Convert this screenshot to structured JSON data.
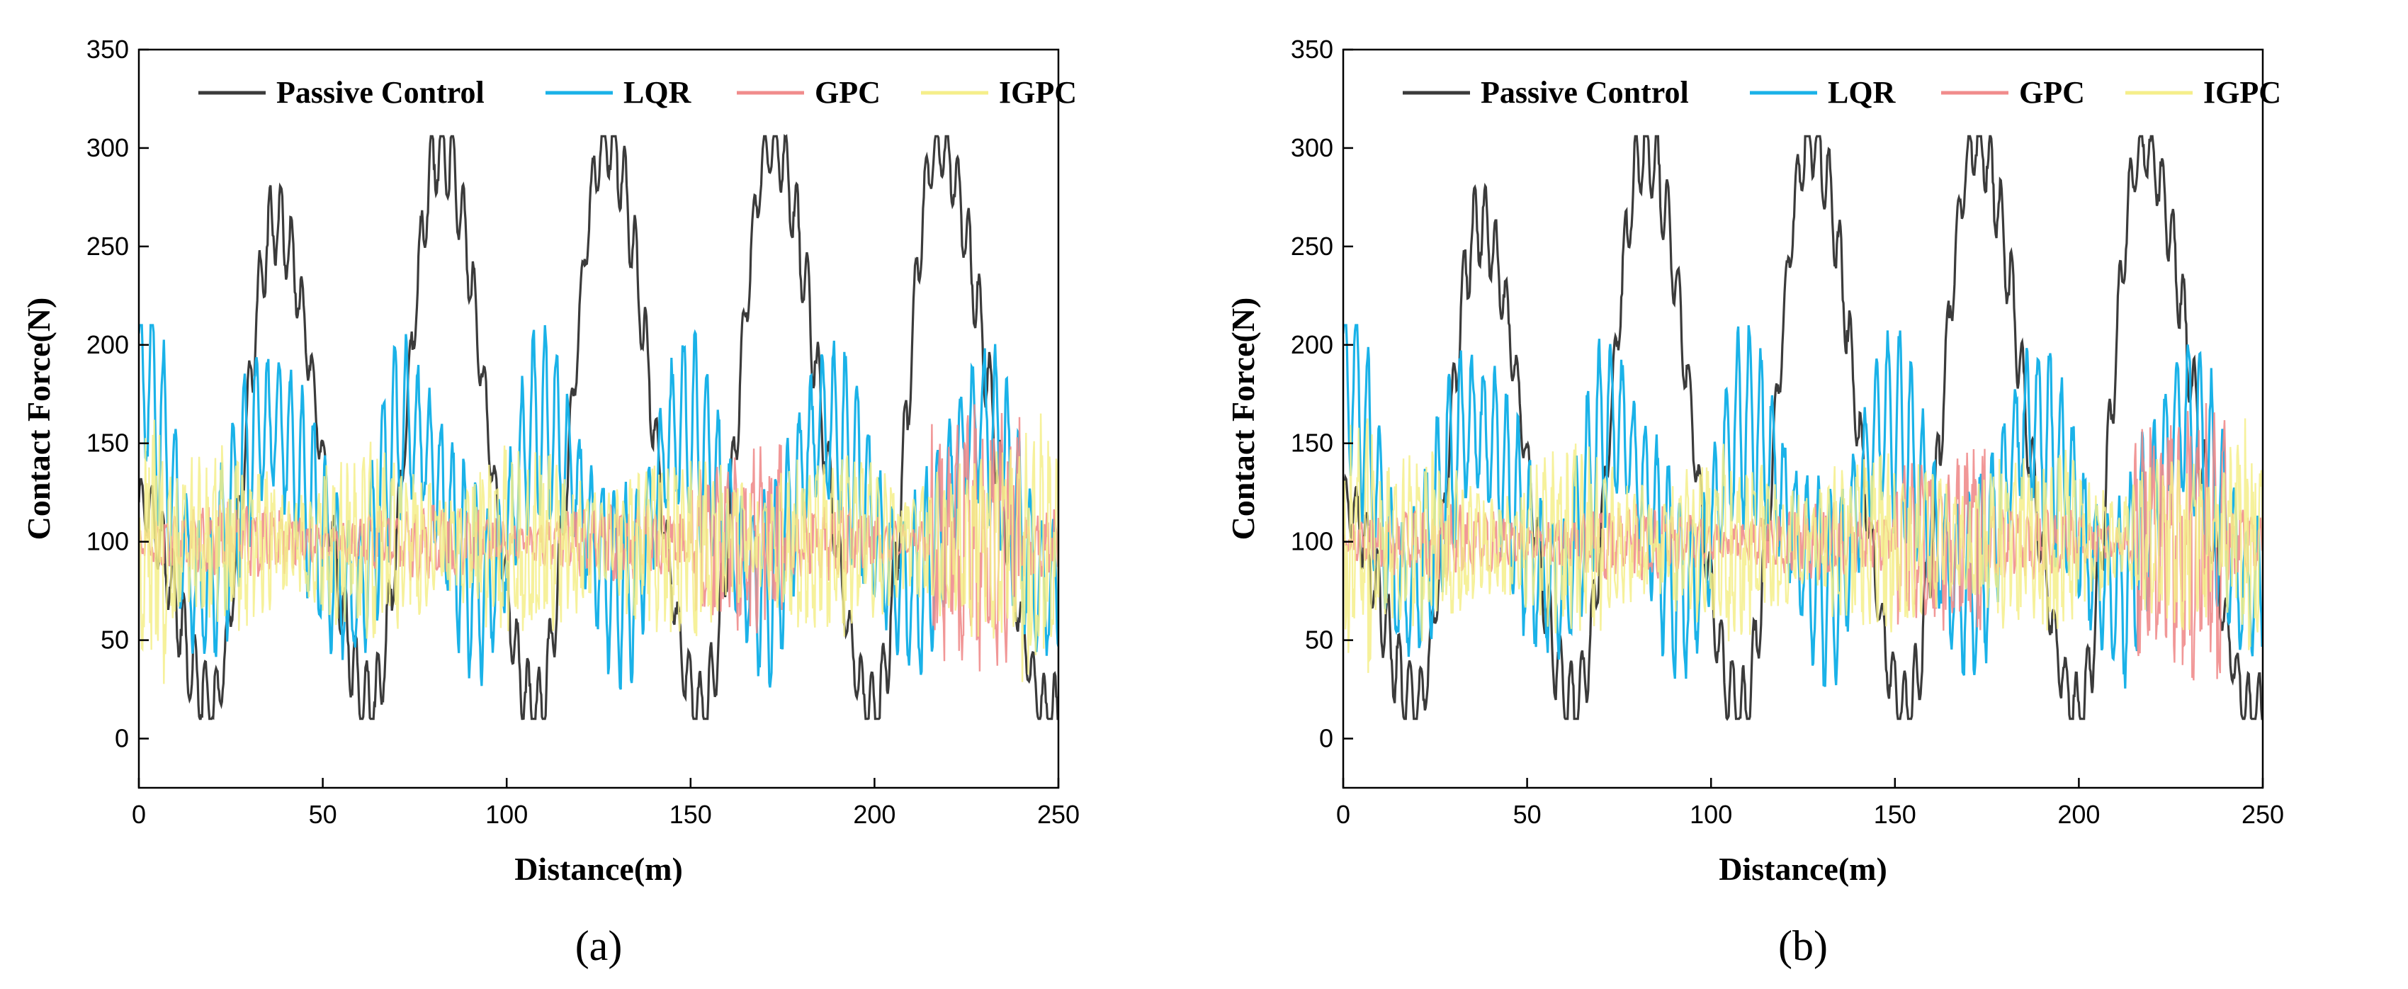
{
  "chart_data": [
    {
      "panel": "(a)",
      "type": "line",
      "title": "",
      "xlabel": "Distance(m)",
      "ylabel": "Contact Force(N)",
      "xlim": [
        0,
        250
      ],
      "ylim": [
        -25,
        350
      ],
      "xticks": [
        0,
        50,
        100,
        150,
        200,
        250
      ],
      "yticks": [
        0,
        50,
        100,
        150,
        200,
        250,
        300,
        350
      ],
      "legend_position": "top",
      "grid": false,
      "series": [
        {
          "name": "Passive Control",
          "color": "#3b3b3b",
          "peaks": [
            [
              37,
              262
            ],
            [
              82,
              300
            ],
            [
              127,
              305
            ],
            [
              172,
              302
            ],
            [
              217,
              300
            ]
          ],
          "troughs": [
            [
              20,
              18
            ],
            [
              63,
              17
            ],
            [
              108,
              14
            ],
            [
              153,
              14
            ],
            [
              200,
              14
            ],
            [
              248,
              13
            ]
          ],
          "ripple": 22
        },
        {
          "name": "LQR",
          "color": "#1ab2e8",
          "high_bands": [
            [
              25,
              45,
              205
            ],
            [
              63,
              82,
              207
            ],
            [
              100,
              118,
              208
            ],
            [
              138,
              157,
              210
            ],
            [
              177,
              196,
              210
            ],
            [
              218,
              240,
              205
            ]
          ],
          "low_bands": [
            [
              12,
              22,
              20
            ],
            [
              55,
              62,
              22
            ],
            [
              90,
              98,
              24
            ],
            [
              128,
              136,
              22
            ],
            [
              165,
              175,
              20
            ],
            [
              205,
              215,
              20
            ],
            [
              244,
              250,
              30
            ]
          ],
          "start": 187
        },
        {
          "name": "GPC",
          "color": "#f08c8c",
          "center": 100,
          "amplitude_range": [
            3,
            60
          ]
        },
        {
          "name": "IGPC",
          "color": "#f5ee8a",
          "center": 100,
          "amplitude_range": [
            10,
            70
          ]
        }
      ]
    },
    {
      "panel": "(b)",
      "type": "line",
      "title": "",
      "xlabel": "Distance(m)",
      "ylabel": "Contact Force(N)",
      "xlim": [
        0,
        250
      ],
      "ylim": [
        -25,
        350
      ],
      "xticks": [
        0,
        50,
        100,
        150,
        200,
        250
      ],
      "yticks": [
        0,
        50,
        100,
        150,
        200,
        250,
        300,
        350
      ],
      "legend_position": "top",
      "grid": false,
      "series": [
        {
          "name": "Passive Control",
          "color": "#3b3b3b",
          "peaks": [
            [
              37,
              262
            ],
            [
              82,
              300
            ],
            [
              127,
              305
            ],
            [
              172,
              302
            ],
            [
              217,
              300
            ]
          ],
          "troughs": [
            [
              20,
              18
            ],
            [
              63,
              17
            ],
            [
              108,
              14
            ],
            [
              153,
              14
            ],
            [
              200,
              14
            ],
            [
              248,
              13
            ]
          ],
          "ripple": 22
        },
        {
          "name": "LQR",
          "color": "#1ab2e8",
          "high_bands": [
            [
              25,
              45,
              205
            ],
            [
              63,
              82,
              207
            ],
            [
              100,
              118,
              208
            ],
            [
              138,
              157,
              210
            ],
            [
              177,
              196,
              210
            ],
            [
              218,
              240,
              205
            ]
          ],
          "low_bands": [
            [
              12,
              22,
              20
            ],
            [
              55,
              62,
              22
            ],
            [
              90,
              98,
              24
            ],
            [
              128,
              136,
              22
            ],
            [
              165,
              175,
              20
            ],
            [
              205,
              215,
              20
            ],
            [
              244,
              250,
              30
            ]
          ],
          "start": 187
        },
        {
          "name": "GPC",
          "color": "#f08c8c",
          "center": 100,
          "amplitude_range": [
            3,
            60
          ]
        },
        {
          "name": "IGPC",
          "color": "#f5ee8a",
          "center": 100,
          "amplitude_range": [
            10,
            70
          ]
        }
      ]
    }
  ]
}
